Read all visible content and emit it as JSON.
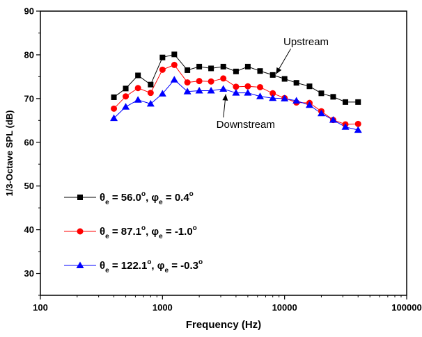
{
  "chart_data": {
    "type": "line",
    "xlabel": "Frequency (Hz)",
    "ylabel": "1/3-Octave SPL (dB)",
    "x_scale": "log",
    "xlim": [
      100,
      100000
    ],
    "ylim": [
      25,
      90
    ],
    "x_ticks": [
      "100",
      "1000",
      "10000",
      "100000"
    ],
    "y_ticks": [
      "30",
      "40",
      "50",
      "60",
      "70",
      "80",
      "90"
    ],
    "x": [
      400,
      500,
      630,
      800,
      1000,
      1250,
      1600,
      2000,
      2500,
      3150,
      4000,
      5000,
      6300,
      8000,
      10000,
      12500,
      16000,
      20000,
      25000,
      31500,
      40000
    ],
    "series": [
      {
        "name": "θe = 56.0°, φe = 0.4°",
        "legend": {
          "theta_sym": "θ",
          "theta_sub": "e",
          "theta_val": " =   56.0",
          "phi_sym": "φ",
          "phi_sub": "e",
          "phi_val": " =  0.4",
          "deg": "o",
          "sep": ", "
        },
        "color": "#000000",
        "marker": "square",
        "values": [
          70.3,
          72.3,
          75.3,
          73.2,
          79.4,
          80.1,
          76.5,
          77.3,
          76.9,
          77.3,
          76.2,
          77.3,
          76.3,
          75.4,
          74.5,
          73.6,
          72.8,
          71.2,
          70.4,
          69.2,
          69.2
        ]
      },
      {
        "name": "θe = 87.1°, φe = -1.0°",
        "legend": {
          "theta_sym": "θ",
          "theta_sub": "e",
          "theta_val": " =   87.1",
          "phi_sym": "φ",
          "phi_sub": "e",
          "phi_val": " = -1.0",
          "deg": "o",
          "sep": ", "
        },
        "color": "#ff0000",
        "marker": "circle",
        "values": [
          67.7,
          70.5,
          72.4,
          71.3,
          76.6,
          77.7,
          73.7,
          74.0,
          73.9,
          74.6,
          72.7,
          72.8,
          72.6,
          71.2,
          70.1,
          69.1,
          69.0,
          67.1,
          65.1,
          64.1,
          64.2
        ]
      },
      {
        "name": "θe = 122.1°, φe = -0.3°",
        "legend": {
          "theta_sym": "θ",
          "theta_sub": "e",
          "theta_val": " = 122.1",
          "phi_sym": "φ",
          "phi_sub": "e",
          "phi_val": " = -0.3",
          "deg": "o",
          "sep": ", "
        },
        "color": "#0000ff",
        "marker": "triangle",
        "values": [
          65.5,
          68.1,
          69.7,
          68.8,
          71.1,
          74.3,
          71.6,
          71.8,
          71.8,
          72.2,
          71.3,
          71.3,
          70.5,
          70.1,
          70.0,
          69.5,
          68.5,
          66.6,
          65.1,
          63.5,
          62.8
        ]
      }
    ],
    "annotations": [
      {
        "text": "Upstream",
        "x": 15000,
        "y": 82.2,
        "arrow_to": [
          8500,
          75.6
        ],
        "anchor": "middle"
      },
      {
        "text": "Downstream",
        "x": 4800,
        "y": 63.3,
        "arrow_to": [
          3300,
          71.0
        ],
        "anchor": "middle"
      }
    ],
    "legend_position": "lower-left"
  }
}
